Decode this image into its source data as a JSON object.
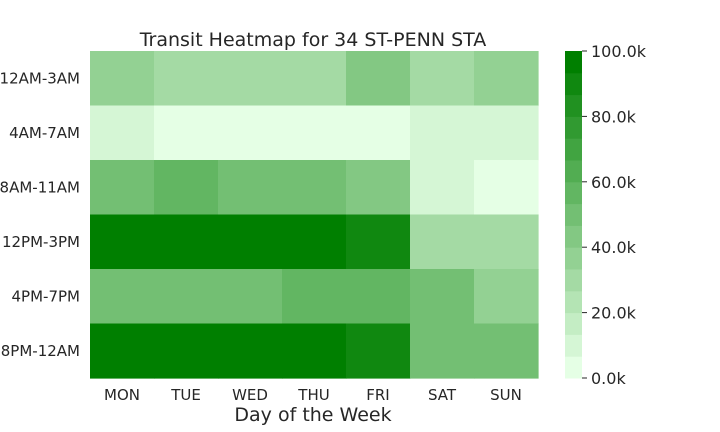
{
  "chart_data": {
    "type": "heatmap",
    "title": "Transit Heatmap for 34 ST-PENN STA",
    "xlabel": "Day of the Week",
    "ylabel": "",
    "x_categories": [
      "MON",
      "TUE",
      "WED",
      "THU",
      "FRI",
      "SAT",
      "SUN"
    ],
    "y_categories": [
      "12AM-3AM",
      "4AM-7AM",
      "8AM-11AM",
      "12PM-3PM",
      "4PM-7PM",
      "8PM-12AM"
    ],
    "values": [
      [
        35000,
        28000,
        33000,
        33000,
        40000,
        29000,
        36000
      ],
      [
        13000,
        4000,
        4000,
        4000,
        4000,
        10000,
        11000
      ],
      [
        47000,
        55000,
        51000,
        48000,
        40000,
        11000,
        4000
      ],
      [
        99000,
        99000,
        99000,
        99000,
        88000,
        29000,
        29000
      ],
      [
        51000,
        51000,
        51000,
        55000,
        59000,
        47000,
        38000
      ],
      [
        99000,
        99000,
        99000,
        99000,
        88000,
        51000,
        51000
      ]
    ],
    "colorbar": {
      "min": 0,
      "max": 100000,
      "levels": 15,
      "ticks": [
        0,
        20000,
        40000,
        60000,
        80000,
        100000
      ],
      "tick_labels": [
        "0.0k",
        "20.0k",
        "40.0k",
        "60.0k",
        "80.0k",
        "100.0k"
      ],
      "color_low": "#e5ffe5",
      "color_high": "#007f00"
    }
  }
}
